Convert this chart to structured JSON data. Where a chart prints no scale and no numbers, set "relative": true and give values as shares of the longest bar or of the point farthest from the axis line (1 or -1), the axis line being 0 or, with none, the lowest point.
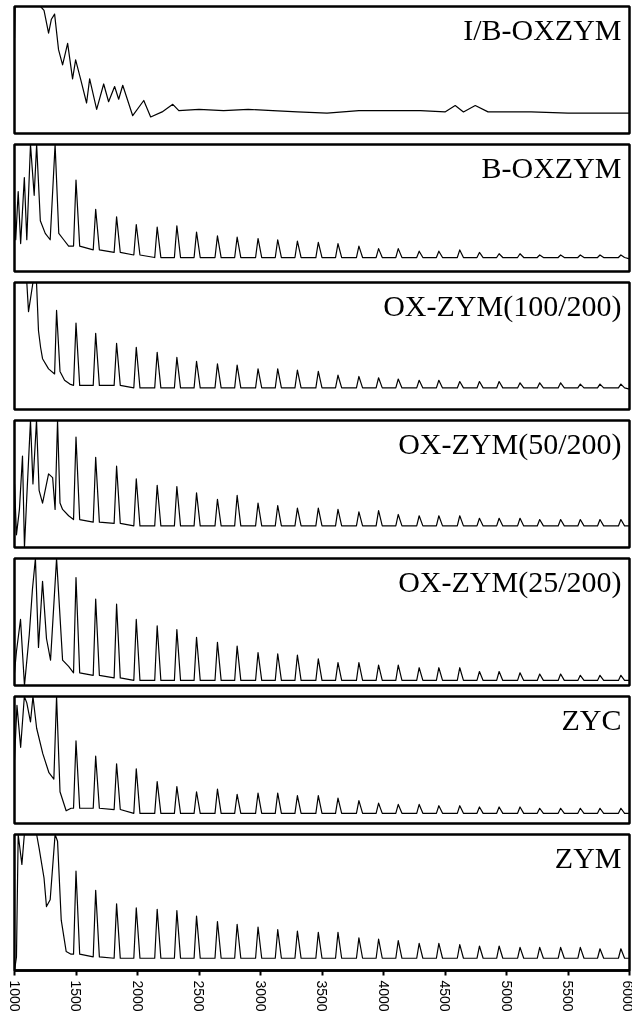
{
  "chart_data": [
    {
      "type": "line",
      "relative": true,
      "title": "I/B-OXZYM",
      "xlim": [
        1000,
        6000
      ],
      "tick_labels": false,
      "series": [
        {
          "color": "#000000",
          "x": [
            1000,
            1005,
            1212,
            1240,
            1277,
            1300,
            1326,
            1358,
            1391,
            1432,
            1472,
            1497,
            1537,
            1586,
            1611,
            1668,
            1725,
            1765,
            1814,
            1847,
            1880,
            1961,
            2051,
            2107,
            2200,
            2287,
            2336,
            2500,
            2700,
            2900,
            3100,
            3300,
            3541,
            3800,
            4000,
            4300,
            4500,
            4583,
            4650,
            4746,
            4850,
            5200,
            5500,
            6000
          ],
          "values": [
            0.75,
            1.0,
            1.0,
            0.97,
            0.79,
            0.9,
            0.94,
            0.66,
            0.54,
            0.71,
            0.43,
            0.58,
            0.43,
            0.24,
            0.43,
            0.19,
            0.39,
            0.25,
            0.37,
            0.27,
            0.38,
            0.14,
            0.26,
            0.13,
            0.17,
            0.23,
            0.18,
            0.19,
            0.18,
            0.19,
            0.18,
            0.17,
            0.16,
            0.18,
            0.18,
            0.18,
            0.17,
            0.22,
            0.17,
            0.22,
            0.17,
            0.17,
            0.16,
            0.16
          ]
        }
      ]
    },
    {
      "type": "line",
      "relative": true,
      "title": "B-OXZYM",
      "xlim": [
        1000,
        6000
      ],
      "tick_labels": false,
      "series": [
        {
          "color": "#000000",
          "x": [
            1000,
            1010,
            1030,
            1050,
            1080,
            1100,
            1130,
            1160,
            1180,
            1210,
            1250,
            1290,
            1330,
            1360,
            1400,
            1440,
            1480,
            1500,
            1530,
            1640,
            1660,
            1690,
            1810,
            1830,
            1860,
            1970,
            1990,
            2020,
            2140,
            2160,
            2190,
            2300,
            2320,
            2350,
            2460,
            2480,
            2510,
            2630,
            2650,
            2680,
            2790,
            2810,
            2840,
            2960,
            2980,
            3010,
            3120,
            3140,
            3170,
            3280,
            3300,
            3330,
            3450,
            3470,
            3500,
            3610,
            3630,
            3660,
            3780,
            3800,
            3830,
            3940,
            3960,
            3990,
            4100,
            4120,
            4150,
            4270,
            4290,
            4320,
            4430,
            4450,
            4480,
            4600,
            4620,
            4650,
            4760,
            4780,
            4810,
            4920,
            4940,
            4970,
            5090,
            5110,
            5140,
            5250,
            5270,
            5300,
            5420,
            5440,
            5470,
            5580,
            5600,
            5630,
            5740,
            5760,
            5790,
            5910,
            5930,
            5960,
            6000
          ],
          "values": [
            0.55,
            0.25,
            0.63,
            0.22,
            0.74,
            0.25,
            1.0,
            0.6,
            1.0,
            0.4,
            0.3,
            0.25,
            1.0,
            0.3,
            0.25,
            0.2,
            0.2,
            0.72,
            0.2,
            0.17,
            0.49,
            0.17,
            0.15,
            0.43,
            0.15,
            0.13,
            0.37,
            0.13,
            0.11,
            0.35,
            0.11,
            0.11,
            0.36,
            0.11,
            0.11,
            0.31,
            0.11,
            0.11,
            0.28,
            0.11,
            0.11,
            0.27,
            0.11,
            0.11,
            0.26,
            0.11,
            0.11,
            0.25,
            0.11,
            0.11,
            0.24,
            0.11,
            0.11,
            0.23,
            0.11,
            0.11,
            0.22,
            0.11,
            0.11,
            0.2,
            0.11,
            0.11,
            0.18,
            0.11,
            0.11,
            0.18,
            0.11,
            0.11,
            0.16,
            0.11,
            0.11,
            0.16,
            0.11,
            0.11,
            0.17,
            0.11,
            0.11,
            0.15,
            0.11,
            0.11,
            0.14,
            0.11,
            0.11,
            0.14,
            0.11,
            0.11,
            0.13,
            0.11,
            0.11,
            0.13,
            0.11,
            0.11,
            0.13,
            0.11,
            0.11,
            0.13,
            0.11,
            0.11,
            0.13,
            0.11,
            0.1
          ]
        }
      ]
    },
    {
      "type": "line",
      "relative": true,
      "title": "OX-ZYM(100/200)",
      "xlim": [
        1000,
        6000
      ],
      "tick_labels": false,
      "series": [
        {
          "color": "#000000",
          "x": [
            1000,
            1050,
            1100,
            1114,
            1150,
            1179,
            1195,
            1212,
            1228,
            1277,
            1326,
            1342,
            1370,
            1407,
            1450,
            1480,
            1500,
            1530,
            1640,
            1660,
            1690,
            1810,
            1830,
            1860,
            1970,
            1990,
            2020,
            2140,
            2160,
            2190,
            2300,
            2320,
            2350,
            2460,
            2480,
            2510,
            2630,
            2650,
            2680,
            2790,
            2810,
            2840,
            2960,
            2980,
            3010,
            3120,
            3140,
            3170,
            3280,
            3300,
            3330,
            3450,
            3470,
            3500,
            3610,
            3630,
            3660,
            3780,
            3800,
            3830,
            3940,
            3960,
            3990,
            4100,
            4120,
            4150,
            4270,
            4290,
            4320,
            4430,
            4450,
            4480,
            4600,
            4620,
            4650,
            4760,
            4780,
            4810,
            4920,
            4940,
            4970,
            5090,
            5110,
            5140,
            5250,
            5270,
            5300,
            5420,
            5440,
            5470,
            5580,
            5600,
            5630,
            5740,
            5760,
            5790,
            5910,
            5930,
            5960,
            6000
          ],
          "values": [
            1.0,
            1.0,
            1.0,
            0.77,
            1.0,
            1.0,
            0.62,
            0.49,
            0.4,
            0.32,
            0.28,
            0.78,
            0.3,
            0.23,
            0.2,
            0.19,
            0.68,
            0.19,
            0.19,
            0.6,
            0.19,
            0.19,
            0.52,
            0.19,
            0.17,
            0.49,
            0.17,
            0.17,
            0.45,
            0.17,
            0.17,
            0.41,
            0.17,
            0.17,
            0.38,
            0.17,
            0.17,
            0.36,
            0.17,
            0.17,
            0.35,
            0.17,
            0.17,
            0.32,
            0.17,
            0.17,
            0.32,
            0.17,
            0.17,
            0.31,
            0.17,
            0.17,
            0.3,
            0.17,
            0.17,
            0.27,
            0.17,
            0.17,
            0.26,
            0.17,
            0.17,
            0.25,
            0.17,
            0.17,
            0.24,
            0.17,
            0.17,
            0.23,
            0.17,
            0.17,
            0.23,
            0.17,
            0.17,
            0.22,
            0.17,
            0.17,
            0.22,
            0.17,
            0.17,
            0.22,
            0.17,
            0.17,
            0.21,
            0.17,
            0.17,
            0.21,
            0.17,
            0.17,
            0.21,
            0.17,
            0.17,
            0.2,
            0.17,
            0.17,
            0.2,
            0.17,
            0.17,
            0.2,
            0.17,
            0.16
          ]
        }
      ]
    },
    {
      "type": "line",
      "relative": true,
      "title": "OX-ZYM(50/200)",
      "xlim": [
        1000,
        6000
      ],
      "tick_labels": false,
      "series": [
        {
          "color": "#000000",
          "x": [
            1000,
            1016,
            1040,
            1065,
            1081,
            1100,
            1130,
            1150,
            1179,
            1200,
            1228,
            1277,
            1310,
            1330,
            1350,
            1370,
            1391,
            1440,
            1480,
            1500,
            1530,
            1640,
            1660,
            1690,
            1810,
            1830,
            1860,
            1970,
            1990,
            2020,
            2140,
            2160,
            2190,
            2300,
            2320,
            2350,
            2460,
            2480,
            2510,
            2630,
            2650,
            2680,
            2790,
            2810,
            2840,
            2960,
            2980,
            3010,
            3120,
            3140,
            3170,
            3280,
            3300,
            3330,
            3450,
            3470,
            3500,
            3610,
            3630,
            3660,
            3780,
            3800,
            3830,
            3940,
            3960,
            3990,
            4100,
            4120,
            4150,
            4270,
            4290,
            4320,
            4430,
            4450,
            4480,
            4600,
            4620,
            4650,
            4760,
            4780,
            4810,
            4920,
            4940,
            4970,
            5090,
            5110,
            5140,
            5250,
            5270,
            5300,
            5420,
            5440,
            5470,
            5580,
            5600,
            5630,
            5740,
            5760,
            5790,
            5910,
            5930,
            5960,
            6000
          ],
          "values": [
            0.5,
            0.1,
            0.3,
            0.72,
            0.0,
            0.4,
            1.0,
            0.5,
            1.0,
            0.45,
            0.35,
            0.58,
            0.55,
            0.3,
            1.0,
            0.35,
            0.3,
            0.25,
            0.22,
            0.87,
            0.22,
            0.2,
            0.71,
            0.2,
            0.19,
            0.64,
            0.19,
            0.17,
            0.54,
            0.17,
            0.17,
            0.49,
            0.17,
            0.17,
            0.48,
            0.17,
            0.17,
            0.43,
            0.17,
            0.17,
            0.38,
            0.17,
            0.17,
            0.41,
            0.17,
            0.17,
            0.35,
            0.17,
            0.17,
            0.33,
            0.17,
            0.17,
            0.31,
            0.17,
            0.17,
            0.31,
            0.17,
            0.17,
            0.3,
            0.17,
            0.17,
            0.28,
            0.17,
            0.17,
            0.29,
            0.17,
            0.17,
            0.26,
            0.17,
            0.17,
            0.25,
            0.17,
            0.17,
            0.25,
            0.17,
            0.17,
            0.25,
            0.17,
            0.17,
            0.23,
            0.17,
            0.17,
            0.23,
            0.17,
            0.17,
            0.23,
            0.17,
            0.17,
            0.22,
            0.17,
            0.17,
            0.22,
            0.17,
            0.17,
            0.22,
            0.17,
            0.17,
            0.22,
            0.17,
            0.17,
            0.22,
            0.17,
            0.17
          ]
        }
      ]
    },
    {
      "type": "line",
      "relative": true,
      "title": "OX-ZYM(25/200)",
      "xlim": [
        1000,
        6000
      ],
      "tick_labels": false,
      "series": [
        {
          "color": "#000000",
          "x": [
            1000,
            1016,
            1049,
            1081,
            1120,
            1146,
            1170,
            1195,
            1228,
            1260,
            1293,
            1342,
            1391,
            1440,
            1480,
            1500,
            1530,
            1640,
            1660,
            1690,
            1810,
            1830,
            1860,
            1970,
            1990,
            2020,
            2140,
            2160,
            2190,
            2300,
            2320,
            2350,
            2460,
            2480,
            2510,
            2630,
            2650,
            2680,
            2790,
            2810,
            2840,
            2960,
            2980,
            3010,
            3120,
            3140,
            3170,
            3280,
            3300,
            3330,
            3450,
            3470,
            3500,
            3610,
            3630,
            3660,
            3780,
            3800,
            3830,
            3940,
            3960,
            3990,
            4100,
            4120,
            4150,
            4270,
            4290,
            4320,
            4430,
            4450,
            4480,
            4600,
            4620,
            4650,
            4760,
            4780,
            4810,
            4920,
            4940,
            4970,
            5090,
            5110,
            5140,
            5250,
            5270,
            5300,
            5420,
            5440,
            5470,
            5580,
            5600,
            5630,
            5740,
            5760,
            5790,
            5910,
            5930,
            5960,
            6000
          ],
          "values": [
            0.1,
            0.27,
            0.52,
            0.0,
            0.4,
            0.76,
            1.0,
            0.3,
            0.82,
            0.37,
            0.2,
            1.0,
            0.2,
            0.15,
            0.1,
            0.85,
            0.1,
            0.08,
            0.68,
            0.08,
            0.06,
            0.64,
            0.06,
            0.04,
            0.52,
            0.04,
            0.04,
            0.47,
            0.04,
            0.04,
            0.44,
            0.04,
            0.04,
            0.38,
            0.04,
            0.04,
            0.34,
            0.04,
            0.04,
            0.31,
            0.04,
            0.04,
            0.26,
            0.04,
            0.04,
            0.25,
            0.04,
            0.04,
            0.24,
            0.04,
            0.04,
            0.21,
            0.04,
            0.04,
            0.18,
            0.04,
            0.04,
            0.18,
            0.04,
            0.04,
            0.16,
            0.04,
            0.04,
            0.16,
            0.04,
            0.04,
            0.14,
            0.04,
            0.04,
            0.14,
            0.04,
            0.04,
            0.14,
            0.04,
            0.04,
            0.11,
            0.04,
            0.04,
            0.11,
            0.04,
            0.04,
            0.1,
            0.04,
            0.04,
            0.09,
            0.04,
            0.04,
            0.09,
            0.04,
            0.04,
            0.08,
            0.04,
            0.04,
            0.08,
            0.04,
            0.04,
            0.08,
            0.04,
            0.04
          ]
        }
      ]
    },
    {
      "type": "line",
      "relative": true,
      "title": "ZYC",
      "xlim": [
        1000,
        6000
      ],
      "tick_labels": false,
      "series": [
        {
          "color": "#000000",
          "x": [
            1000,
            1020,
            1050,
            1080,
            1100,
            1130,
            1150,
            1180,
            1230,
            1280,
            1320,
            1342,
            1370,
            1420,
            1460,
            1480,
            1500,
            1530,
            1640,
            1660,
            1690,
            1810,
            1830,
            1860,
            1970,
            1990,
            2020,
            2140,
            2160,
            2190,
            2300,
            2320,
            2350,
            2460,
            2480,
            2510,
            2630,
            2650,
            2680,
            2790,
            2810,
            2840,
            2960,
            2980,
            3010,
            3120,
            3140,
            3170,
            3280,
            3300,
            3330,
            3450,
            3470,
            3500,
            3610,
            3630,
            3660,
            3780,
            3800,
            3830,
            3940,
            3960,
            3990,
            4100,
            4120,
            4150,
            4270,
            4290,
            4320,
            4430,
            4450,
            4480,
            4600,
            4620,
            4650,
            4760,
            4780,
            4810,
            4920,
            4940,
            4970,
            5090,
            5110,
            5140,
            5250,
            5270,
            5300,
            5420,
            5440,
            5470,
            5580,
            5600,
            5630,
            5740,
            5760,
            5790,
            5910,
            5930,
            5960,
            6000
          ],
          "values": [
            0.5,
            0.93,
            0.6,
            1.0,
            0.95,
            0.8,
            1.0,
            0.75,
            0.55,
            0.4,
            0.35,
            1.0,
            0.25,
            0.1,
            0.12,
            0.12,
            0.65,
            0.12,
            0.12,
            0.53,
            0.12,
            0.11,
            0.47,
            0.11,
            0.08,
            0.43,
            0.08,
            0.08,
            0.33,
            0.08,
            0.08,
            0.29,
            0.08,
            0.08,
            0.25,
            0.08,
            0.08,
            0.27,
            0.08,
            0.08,
            0.23,
            0.08,
            0.08,
            0.24,
            0.08,
            0.08,
            0.24,
            0.08,
            0.08,
            0.22,
            0.08,
            0.08,
            0.22,
            0.08,
            0.08,
            0.2,
            0.08,
            0.08,
            0.18,
            0.08,
            0.08,
            0.16,
            0.08,
            0.08,
            0.15,
            0.08,
            0.08,
            0.15,
            0.08,
            0.08,
            0.14,
            0.08,
            0.08,
            0.14,
            0.08,
            0.08,
            0.13,
            0.08,
            0.08,
            0.13,
            0.08,
            0.08,
            0.13,
            0.08,
            0.08,
            0.12,
            0.08,
            0.08,
            0.12,
            0.08,
            0.08,
            0.12,
            0.08,
            0.08,
            0.12,
            0.08,
            0.08,
            0.12,
            0.08,
            0.08
          ]
        }
      ]
    },
    {
      "type": "line",
      "relative": true,
      "title": "ZYM",
      "xlim": [
        1000,
        6000
      ],
      "xticks": [
        1000,
        1500,
        2000,
        2500,
        3000,
        3500,
        4000,
        4500,
        5000,
        5500,
        6000
      ],
      "tick_labels": "x",
      "series": [
        {
          "color": "#000000",
          "x": [
            1000,
            1016,
            1030,
            1060,
            1080,
            1180,
            1200,
            1240,
            1260,
            1290,
            1330,
            1350,
            1380,
            1420,
            1460,
            1480,
            1500,
            1530,
            1640,
            1660,
            1690,
            1810,
            1830,
            1860,
            1970,
            1990,
            2020,
            2140,
            2160,
            2190,
            2300,
            2320,
            2350,
            2460,
            2480,
            2510,
            2630,
            2650,
            2680,
            2790,
            2810,
            2840,
            2960,
            2980,
            3010,
            3120,
            3140,
            3170,
            3280,
            3300,
            3330,
            3450,
            3470,
            3500,
            3610,
            3630,
            3660,
            3780,
            3800,
            3830,
            3940,
            3960,
            3990,
            4100,
            4120,
            4150,
            4270,
            4290,
            4320,
            4430,
            4450,
            4480,
            4600,
            4620,
            4650,
            4760,
            4780,
            4810,
            4920,
            4940,
            4970,
            5090,
            5110,
            5140,
            5250,
            5270,
            5300,
            5420,
            5440,
            5470,
            5580,
            5600,
            5630,
            5740,
            5760,
            5790,
            5910,
            5930,
            5960,
            6000
          ],
          "values": [
            0.0,
            0.1,
            1.0,
            0.78,
            1.0,
            1.0,
            0.9,
            0.68,
            0.47,
            0.52,
            1.0,
            0.95,
            0.37,
            0.14,
            0.12,
            0.12,
            0.73,
            0.12,
            0.1,
            0.59,
            0.1,
            0.09,
            0.49,
            0.09,
            0.09,
            0.46,
            0.09,
            0.09,
            0.45,
            0.09,
            0.09,
            0.44,
            0.09,
            0.09,
            0.4,
            0.09,
            0.09,
            0.36,
            0.09,
            0.09,
            0.34,
            0.09,
            0.09,
            0.32,
            0.09,
            0.09,
            0.3,
            0.09,
            0.09,
            0.29,
            0.09,
            0.09,
            0.28,
            0.09,
            0.09,
            0.28,
            0.09,
            0.09,
            0.24,
            0.09,
            0.09,
            0.23,
            0.09,
            0.09,
            0.22,
            0.09,
            0.09,
            0.2,
            0.09,
            0.09,
            0.2,
            0.09,
            0.09,
            0.19,
            0.09,
            0.09,
            0.18,
            0.09,
            0.09,
            0.18,
            0.09,
            0.09,
            0.17,
            0.09,
            0.09,
            0.17,
            0.09,
            0.09,
            0.17,
            0.09,
            0.09,
            0.17,
            0.09,
            0.09,
            0.16,
            0.09,
            0.09,
            0.16,
            0.09,
            0.09
          ]
        }
      ]
    }
  ]
}
